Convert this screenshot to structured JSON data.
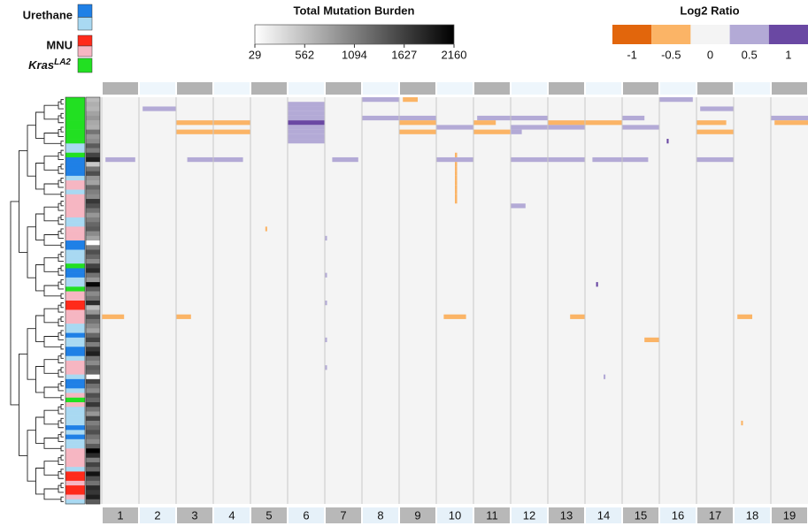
{
  "chart_data": {
    "type": "heatmap",
    "legend_groups": [
      {
        "label": "Urethane",
        "colors": [
          "#1f80e6",
          "#a9d9f2"
        ]
      },
      {
        "label": "MNU",
        "colors": [
          "#ff2a1a",
          "#f6b6c2"
        ]
      },
      {
        "label": "Kras",
        "superscript": "LA2",
        "colors": [
          "#22e022"
        ]
      }
    ],
    "group_colors": [
      "#1f80e6",
      "#a9d9f2",
      "#ff2a1a",
      "#f6b6c2",
      "#22e022"
    ],
    "burden_title": "Total Mutation Burden",
    "burden_lim": [
      29,
      2160
    ],
    "burden_ticks": [
      29,
      562,
      1094,
      1627,
      2160
    ],
    "ratio_title": "Log2 Ratio",
    "ratio_ticks": [
      -1,
      -0.5,
      0,
      0.5,
      1
    ],
    "ratio_colors": [
      "#e2660c",
      "#fbb466",
      "#f4f4f4",
      "#b3aad6",
      "#6a48a3"
    ],
    "chromosomes": [
      "1",
      "2",
      "3",
      "4",
      "5",
      "6",
      "7",
      "8",
      "9",
      "10",
      "11",
      "12",
      "13",
      "14",
      "15",
      "16",
      "17",
      "18",
      "19"
    ],
    "sample_groups": [
      4,
      4,
      4,
      4,
      4,
      4,
      4,
      4,
      4,
      4,
      1,
      1,
      4,
      0,
      0,
      0,
      0,
      1,
      3,
      3,
      1,
      3,
      3,
      3,
      3,
      3,
      1,
      1,
      3,
      3,
      3,
      0,
      0,
      1,
      1,
      1,
      4,
      0,
      0,
      1,
      1,
      4,
      3,
      3,
      2,
      2,
      3,
      3,
      3,
      1,
      1,
      0,
      1,
      1,
      0,
      0,
      1,
      3,
      3,
      3,
      1,
      0,
      0,
      1,
      3,
      4,
      3,
      1,
      1,
      1,
      1,
      0,
      1,
      0,
      1,
      1,
      3,
      3,
      3,
      3,
      1,
      2,
      2,
      3,
      2,
      2,
      3,
      1
    ],
    "sample_burden": [
      600,
      700,
      650,
      800,
      900,
      750,
      700,
      1200,
      900,
      1000,
      1400,
      1100,
      1600,
      1900,
      500,
      1200,
      1500,
      900,
      800,
      1300,
      1100,
      1000,
      1700,
      1500,
      1200,
      900,
      1100,
      1300,
      1400,
      1000,
      800,
      40,
      1100,
      1500,
      1300,
      1000,
      1600,
      1800,
      1200,
      900,
      2100,
      1400,
      1000,
      1200,
      1800,
      600,
      900,
      1500,
      1200,
      1000,
      800,
      1300,
      1600,
      1100,
      1700,
      1900,
      1200,
      1000,
      1400,
      1300,
      60,
      1600,
      1200,
      1000,
      1500,
      1300,
      1700,
      1200,
      900,
      1600,
      1100,
      1300,
      1500,
      1200,
      1000,
      1400,
      2160,
      1800,
      1100,
      1600,
      1300,
      2000,
      1500,
      1200,
      1800,
      1700,
      1900,
      1400
    ],
    "segments": [
      [
        0,
        7,
        0,
        1,
        0.5
      ],
      [
        0,
        15,
        0,
        0.9,
        0.5
      ],
      [
        0,
        8,
        0.1,
        0.5,
        -0.5
      ],
      [
        1,
        5,
        0,
        1,
        0.5
      ],
      [
        2,
        5,
        0,
        1,
        0.5
      ],
      [
        3,
        5,
        0,
        1,
        0.5
      ],
      [
        4,
        5,
        0,
        1,
        0.5
      ],
      [
        5,
        5,
        0,
        1,
        1
      ],
      [
        6,
        5,
        0,
        1,
        0.5
      ],
      [
        7,
        5,
        0,
        1,
        0.5
      ],
      [
        8,
        5,
        0,
        1,
        0.5
      ],
      [
        9,
        5,
        0,
        1,
        0.5
      ],
      [
        2,
        1,
        0.1,
        1,
        0.5
      ],
      [
        2,
        16,
        0.1,
        1,
        0.5
      ],
      [
        4,
        7,
        0,
        1,
        0.5
      ],
      [
        4,
        11,
        0,
        1,
        0.5
      ],
      [
        4,
        14,
        0,
        0.6,
        0.5
      ],
      [
        4,
        18,
        0,
        1,
        0.5
      ],
      [
        4,
        10,
        0.1,
        1,
        0.5
      ],
      [
        4,
        8,
        0,
        1,
        0.5
      ],
      [
        5,
        2,
        0,
        1,
        -0.5
      ],
      [
        5,
        3,
        0,
        1,
        -0.5
      ],
      [
        5,
        12,
        0,
        1,
        -0.5
      ],
      [
        5,
        13,
        0,
        1,
        -0.5
      ],
      [
        5,
        18,
        0.1,
        1,
        -0.5
      ],
      [
        5,
        8,
        0,
        1,
        -0.5
      ],
      [
        5,
        10,
        0,
        0.6,
        -0.5
      ],
      [
        5,
        16,
        0,
        0.8,
        -0.5
      ],
      [
        6,
        11,
        0,
        1,
        0.5
      ],
      [
        6,
        12,
        0,
        1,
        0.5
      ],
      [
        6,
        14,
        0,
        1,
        0.5
      ],
      [
        6,
        9,
        0,
        1,
        0.5
      ],
      [
        7,
        2,
        0,
        1,
        -0.5
      ],
      [
        7,
        3,
        0,
        1,
        -0.5
      ],
      [
        7,
        8,
        0,
        1,
        -0.5
      ],
      [
        7,
        10,
        0,
        1,
        -0.5
      ],
      [
        7,
        16,
        0,
        1,
        -0.5
      ],
      [
        7,
        11,
        0,
        0.3,
        0.5
      ],
      [
        13,
        0,
        0.1,
        0.9,
        0.5
      ],
      [
        13,
        2,
        0.3,
        1,
        0.5
      ],
      [
        13,
        3,
        0,
        0.8,
        0.5
      ],
      [
        13,
        6,
        0.2,
        0.9,
        0.5
      ],
      [
        13,
        9,
        0,
        1,
        0.5
      ],
      [
        13,
        11,
        0,
        1,
        0.5
      ],
      [
        13,
        12,
        0,
        1,
        0.5
      ],
      [
        13,
        13,
        0.2,
        1,
        0.5
      ],
      [
        13,
        14,
        0,
        0.7,
        0.5
      ],
      [
        13,
        16,
        0,
        1,
        0.5
      ],
      [
        23,
        11,
        0,
        0.4,
        0.5
      ],
      [
        47,
        0,
        0,
        0.6,
        -0.5
      ],
      [
        47,
        2,
        0,
        0.4,
        -0.5
      ],
      [
        47,
        9,
        0.2,
        0.8,
        -0.5
      ],
      [
        47,
        12,
        0.6,
        1,
        -0.5
      ],
      [
        47,
        17,
        0.1,
        0.5,
        -0.5
      ],
      [
        52,
        14,
        0.6,
        1,
        -0.5
      ],
      [
        12,
        9,
        0.5,
        0.56,
        -0.5
      ],
      [
        14,
        9,
        0.5,
        0.56,
        -0.5
      ],
      [
        15,
        9,
        0.5,
        0.56,
        -0.5
      ],
      [
        16,
        9,
        0.5,
        0.56,
        -0.5
      ],
      [
        17,
        9,
        0.5,
        0.56,
        -0.5
      ],
      [
        18,
        9,
        0.5,
        0.56,
        -0.5
      ],
      [
        19,
        9,
        0.5,
        0.56,
        -0.5
      ],
      [
        20,
        9,
        0.5,
        0.56,
        -0.5
      ],
      [
        21,
        9,
        0.5,
        0.56,
        -0.5
      ],
      [
        22,
        9,
        0.5,
        0.56,
        -0.5
      ],
      [
        30,
        6,
        0,
        0.06,
        0.5
      ],
      [
        38,
        6,
        0,
        0.06,
        0.5
      ],
      [
        44,
        6,
        0,
        0.06,
        0.5
      ],
      [
        52,
        6,
        0,
        0.06,
        0.5
      ],
      [
        58,
        6,
        0,
        0.06,
        0.5
      ],
      [
        40,
        13,
        0.3,
        0.35,
        1
      ],
      [
        9,
        15,
        0.2,
        0.25,
        1
      ],
      [
        28,
        4,
        0.4,
        0.45,
        -0.5
      ],
      [
        60,
        13,
        0.5,
        0.55,
        0.5
      ],
      [
        70,
        17,
        0.2,
        0.25,
        -0.5
      ]
    ]
  }
}
